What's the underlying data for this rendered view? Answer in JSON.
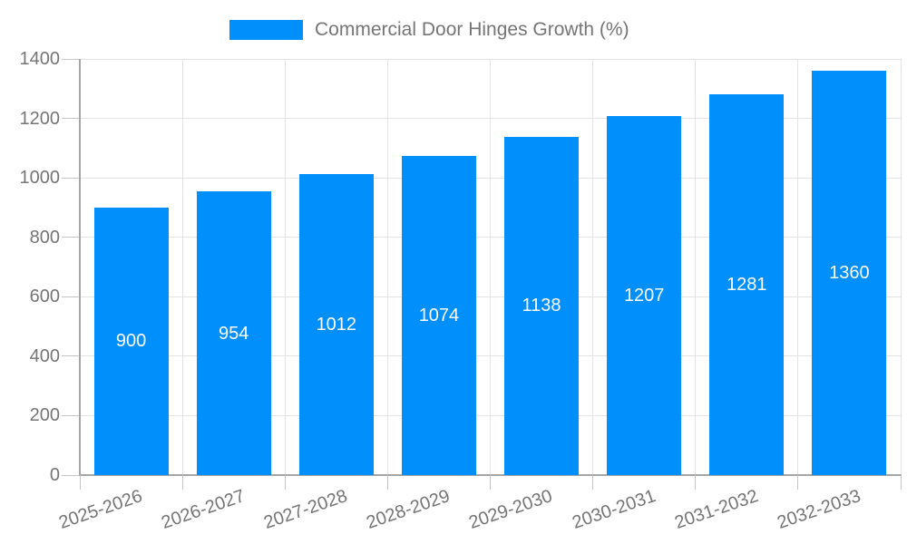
{
  "chart_data": {
    "type": "bar",
    "title": "Commercial Door Hinges Growth (%)",
    "categories": [
      "2025-2026",
      "2026-2027",
      "2027-2028",
      "2028-2029",
      "2029-2030",
      "2030-2031",
      "2031-2032",
      "2032-2033"
    ],
    "values": [
      900,
      954,
      1012,
      1074,
      1138,
      1207,
      1281,
      1360
    ],
    "xlabel": "",
    "ylabel": "",
    "ylim": [
      0,
      1400
    ],
    "yticks": [
      0,
      200,
      400,
      600,
      800,
      1000,
      1200,
      1400
    ],
    "grid": true,
    "legend_position": "top",
    "bar_labels_inside": true
  },
  "colors": {
    "bar": "#008FFB",
    "grid": "#e3e3e3",
    "tick": "#c4c4c4",
    "axis_line": "#a6a6a6",
    "text": "#757575",
    "value_label": "#ffffff",
    "background": "#ffffff"
  }
}
